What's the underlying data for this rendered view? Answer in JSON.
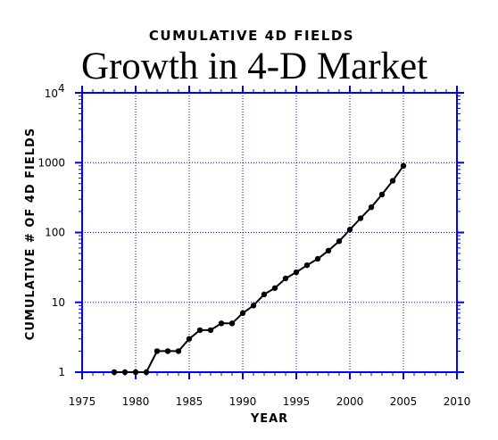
{
  "chart_data": {
    "type": "line",
    "subtitle": "CUMULATIVE 4D FIELDS",
    "title": "Growth in 4-D Market",
    "xlabel": "YEAR",
    "ylabel": "CUMULATIVE # OF 4D FIELDS",
    "xlim": [
      1975,
      2010
    ],
    "ylim": [
      1,
      10000
    ],
    "yscale": "log",
    "x_ticks": [
      "1975",
      "1980",
      "1985",
      "1990",
      "1995",
      "2000",
      "2005",
      "2010"
    ],
    "x_tick_values": [
      1975,
      1980,
      1985,
      1990,
      1995,
      2000,
      2005,
      2010
    ],
    "y_ticks": [
      "1",
      "10",
      "100",
      "1000"
    ],
    "y_tick_values": [
      1,
      10,
      100,
      1000
    ],
    "y_top_tick": {
      "base": "10",
      "exponent": "4",
      "value": 10000
    },
    "grid": true,
    "colors": {
      "axis": "#0000ff",
      "grid": "#0000ff",
      "series": "#000000"
    },
    "series": [
      {
        "x": [
          1978,
          1979,
          1980,
          1981,
          1982,
          1983,
          1984,
          1985,
          1986,
          1987,
          1988,
          1989,
          1990,
          1991,
          1992,
          1993,
          1994,
          1995,
          1996,
          1997,
          1998,
          1999,
          2000,
          2001,
          2002,
          2003,
          2004,
          2005
        ],
        "values": [
          1,
          1,
          1,
          1,
          2,
          2,
          2,
          3,
          4,
          4,
          5,
          5,
          7,
          9,
          13,
          16,
          22,
          27,
          34,
          42,
          55,
          75,
          110,
          160,
          230,
          350,
          550,
          900
        ]
      }
    ]
  }
}
